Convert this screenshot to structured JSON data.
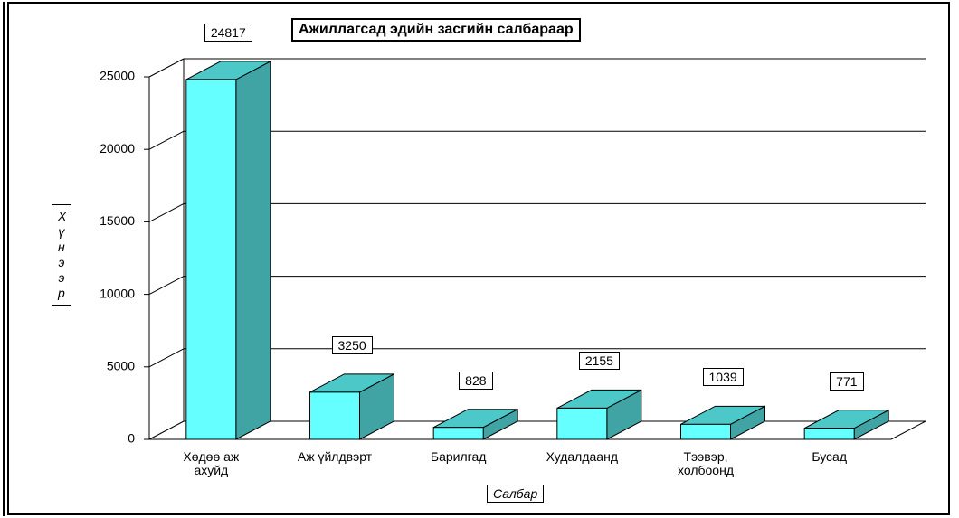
{
  "chart_data": {
    "type": "bar3d",
    "title": "Ажиллагсад эдийн засгийн салбараар",
    "x_label": "Салбар",
    "y_label": "Хүнээр",
    "categories": [
      "Хөдөө аж ахуйд",
      "Аж үйлдвэрт",
      "Барилгад",
      "Худалдаанд",
      "Тээвэр, холбоонд",
      "Бусад"
    ],
    "values": [
      24817,
      3250,
      828,
      2155,
      1039,
      771
    ],
    "color": "#66ffff",
    "ylim": [
      0,
      25000
    ],
    "yticks": [
      0,
      5000,
      10000,
      15000,
      20000,
      25000
    ],
    "grid": true
  }
}
